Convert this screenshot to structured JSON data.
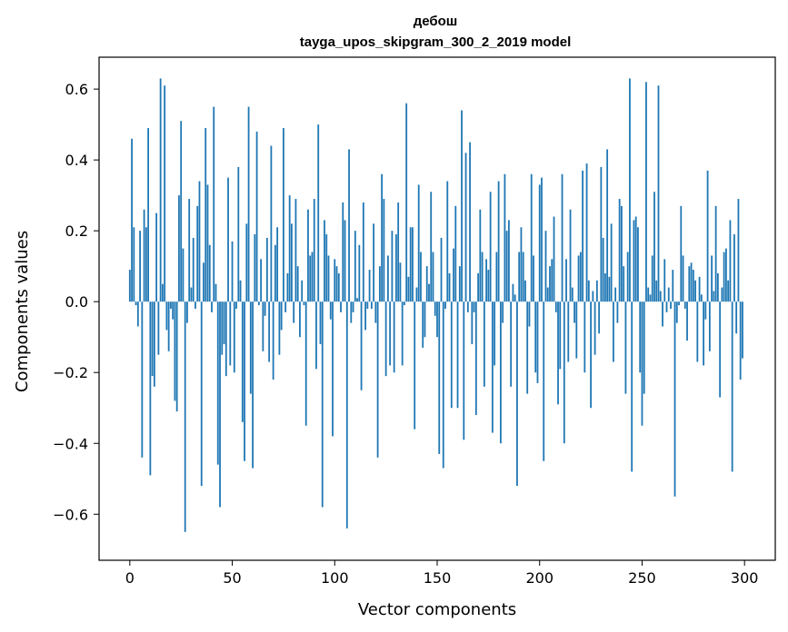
{
  "chart_data": {
    "type": "bar",
    "title": "дебош",
    "subtitle": "tayga_upos_skipgram_300_2_2019 model",
    "xlabel": "Vector components",
    "ylabel": "Components values",
    "xlim": [
      -15,
      315
    ],
    "ylim": [
      -0.73,
      0.69
    ],
    "xticks": [
      0,
      50,
      100,
      150,
      200,
      250,
      300
    ],
    "yticks": [
      -0.6,
      -0.4,
      -0.2,
      0.0,
      0.2,
      0.4,
      0.6
    ],
    "xtick_labels": [
      "0",
      "50",
      "100",
      "150",
      "200",
      "250",
      "300"
    ],
    "ytick_labels": [
      "−0.6",
      "−0.4",
      "−0.2",
      "0.0",
      "0.2",
      "0.4",
      "0.6"
    ],
    "grid": false,
    "bar_color": "#1f77b4",
    "values": [
      0.09,
      0.46,
      0.21,
      -0.01,
      -0.07,
      0.2,
      -0.44,
      0.26,
      0.21,
      0.49,
      -0.49,
      -0.21,
      -0.24,
      0.25,
      -0.15,
      0.63,
      0.05,
      0.61,
      -0.08,
      -0.14,
      -0.02,
      -0.05,
      -0.28,
      -0.31,
      0.3,
      0.51,
      0.15,
      -0.65,
      -0.06,
      0.29,
      0.04,
      0.18,
      -0.02,
      0.27,
      0.34,
      -0.52,
      0.11,
      0.49,
      0.33,
      0.16,
      -0.03,
      0.55,
      0.05,
      -0.46,
      -0.58,
      -0.15,
      -0.12,
      -0.21,
      0.35,
      -0.18,
      0.17,
      -0.2,
      -0.02,
      0.38,
      0.06,
      -0.34,
      -0.45,
      0.22,
      0.55,
      -0.26,
      -0.47,
      0.19,
      0.48,
      -0.01,
      0.12,
      -0.14,
      -0.04,
      0.18,
      -0.17,
      0.44,
      -0.22,
      0.16,
      0.21,
      -0.15,
      -0.08,
      0.49,
      -0.03,
      0.08,
      0.3,
      0.22,
      -0.06,
      0.29,
      0.1,
      -0.1,
      0.06,
      -0.01,
      -0.35,
      0.26,
      0.13,
      0.14,
      0.29,
      -0.19,
      0.5,
      -0.12,
      -0.58,
      0.23,
      0.19,
      0.13,
      -0.05,
      -0.38,
      0.12,
      0.1,
      0.08,
      -0.03,
      0.28,
      0.23,
      -0.64,
      0.43,
      -0.06,
      -0.03,
      0.2,
      0.01,
      0.16,
      -0.25,
      0.28,
      -0.08,
      -0.02,
      0.09,
      -0.02,
      0.22,
      -0.06,
      -0.44,
      0.1,
      0.36,
      0.29,
      -0.21,
      0.13,
      -0.18,
      0.2,
      -0.2,
      0.19,
      0.28,
      0.11,
      -0.18,
      -0.01,
      0.56,
      0.07,
      0.21,
      0.21,
      -0.36,
      0.04,
      0.33,
      0.14,
      -0.13,
      -0.1,
      0.1,
      0.05,
      0.31,
      0.14,
      -0.04,
      -0.1,
      -0.43,
      0.18,
      -0.47,
      -0.02,
      0.34,
      0.08,
      -0.3,
      0.15,
      0.27,
      -0.3,
      0.1,
      0.54,
      -0.39,
      0.42,
      -0.03,
      0.45,
      -0.12,
      -0.03,
      -0.32,
      0.08,
      0.26,
      0.14,
      -0.24,
      0.12,
      0.09,
      0.31,
      -0.37,
      -0.18,
      0.14,
      0.34,
      -0.4,
      -0.06,
      0.36,
      0.2,
      0.23,
      -0.24,
      0.05,
      0.02,
      -0.52,
      0.14,
      0.21,
      0.14,
      0.06,
      -0.26,
      -0.07,
      0.36,
      0.13,
      -0.2,
      -0.23,
      0.33,
      0.35,
      -0.45,
      0.2,
      0.04,
      0.1,
      0.12,
      0.24,
      -0.03,
      -0.29,
      -0.19,
      0.36,
      -0.4,
      0.12,
      -0.17,
      0.26,
      0.04,
      -0.06,
      -0.16,
      0.13,
      0.14,
      0.37,
      -0.2,
      0.39,
      0.06,
      -0.3,
      0.03,
      -0.15,
      0.06,
      -0.09,
      0.38,
      0.18,
      0.08,
      0.43,
      0.07,
      0.22,
      -0.17,
      0.04,
      -0.06,
      0.29,
      0.27,
      0.1,
      -0.26,
      0.14,
      0.63,
      -0.48,
      0.23,
      0.24,
      0.21,
      -0.2,
      -0.35,
      -0.26,
      0.62,
      0.04,
      0.02,
      0.13,
      0.31,
      0.06,
      0.61,
      0.03,
      -0.07,
      0.12,
      -0.03,
      0.04,
      -0.02,
      0.09,
      -0.55,
      -0.06,
      -0.01,
      0.27,
      0.13,
      -0.02,
      -0.11,
      0.1,
      0.11,
      0.09,
      0.06,
      -0.17,
      0.07,
      0.02,
      -0.18,
      -0.05,
      0.37,
      -0.14,
      0.13,
      0.03,
      0.27,
      0.08,
      -0.27,
      0.04,
      0.14,
      0.15,
      0.06,
      0.23,
      -0.48,
      0.19,
      -0.09,
      0.29,
      -0.22,
      -0.16
    ]
  }
}
